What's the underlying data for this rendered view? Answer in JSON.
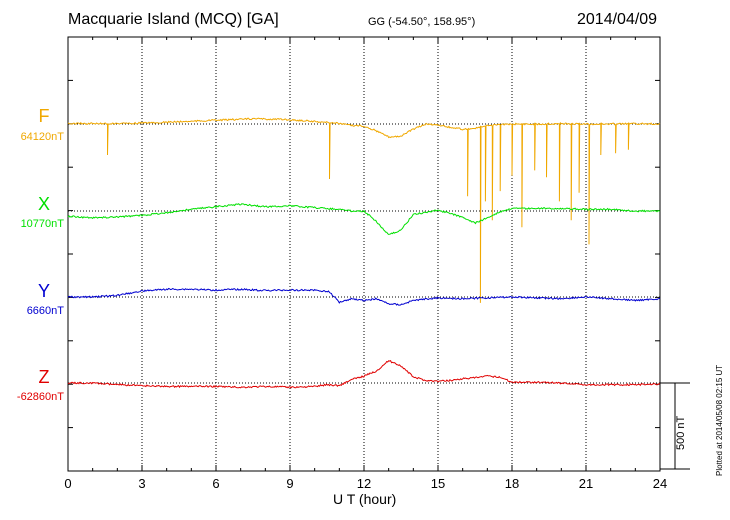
{
  "header": {
    "title": "Macquarie Island (MCQ)  [GA]",
    "coords": "GG (-54.50°, 158.95°)",
    "date": "2014/04/09"
  },
  "footer": {
    "plotted": "Plotted at 2014/05/08 02:15 UT",
    "scale_label": "500 nT"
  },
  "chart_data": {
    "type": "line",
    "xlabel": "U T (hour)",
    "xlim": [
      0,
      24
    ],
    "xticks": [
      0,
      3,
      6,
      9,
      12,
      15,
      18,
      21,
      24
    ],
    "grid": "dotted vertical lines every 3 hours; dotted baseline per component",
    "scale_bar_nT": 500,
    "series": [
      {
        "name": "F",
        "baseline_label": "64120nT",
        "color": "#f0a800",
        "points": [
          [
            0,
            3
          ],
          [
            1,
            3
          ],
          [
            1.5,
            2
          ],
          [
            2.5,
            4
          ],
          [
            4,
            10
          ],
          [
            6,
            22
          ],
          [
            7.5,
            30
          ],
          [
            8.5,
            28
          ],
          [
            9.5,
            20
          ],
          [
            10.5,
            10
          ],
          [
            11,
            3
          ],
          [
            11.5,
            -8
          ],
          [
            12,
            -12
          ],
          [
            12.5,
            -40
          ],
          [
            13,
            -75
          ],
          [
            13.5,
            -70
          ],
          [
            14,
            -30
          ],
          [
            14.5,
            0
          ],
          [
            15,
            -5
          ],
          [
            15.5,
            -20
          ],
          [
            16,
            -30
          ],
          [
            16.5,
            -25
          ],
          [
            17,
            -10
          ],
          [
            17.5,
            -5
          ],
          [
            18,
            0
          ],
          [
            19,
            0
          ],
          [
            20,
            2
          ],
          [
            21,
            0
          ],
          [
            22,
            0
          ],
          [
            23,
            2
          ],
          [
            24,
            0
          ]
        ],
        "spikes": [
          [
            1.6,
            -180
          ],
          [
            10.6,
            -320
          ],
          [
            16.2,
            -420
          ],
          [
            16.7,
            -1040
          ],
          [
            16.9,
            -450
          ],
          [
            17.2,
            -560
          ],
          [
            17.5,
            -390
          ],
          [
            18.0,
            -300
          ],
          [
            18.4,
            -600
          ],
          [
            18.9,
            -270
          ],
          [
            19.4,
            -310
          ],
          [
            19.9,
            -450
          ],
          [
            20.4,
            -560
          ],
          [
            20.7,
            -400
          ],
          [
            21.1,
            -700
          ],
          [
            21.6,
            -180
          ],
          [
            22.2,
            -170
          ],
          [
            22.7,
            -150
          ]
        ]
      },
      {
        "name": "X",
        "baseline_label": "10770nT",
        "color": "#00e000",
        "points": [
          [
            0,
            -30
          ],
          [
            1,
            -40
          ],
          [
            2,
            -35
          ],
          [
            3,
            -25
          ],
          [
            4,
            -10
          ],
          [
            5,
            10
          ],
          [
            6,
            25
          ],
          [
            7,
            40
          ],
          [
            8,
            25
          ],
          [
            9,
            30
          ],
          [
            10,
            20
          ],
          [
            11,
            10
          ],
          [
            11.5,
            0
          ],
          [
            12,
            0
          ],
          [
            12.5,
            -60
          ],
          [
            13,
            -140
          ],
          [
            13.5,
            -110
          ],
          [
            14,
            -20
          ],
          [
            15,
            5
          ],
          [
            15.5,
            -15
          ],
          [
            16,
            -35
          ],
          [
            16.5,
            -70
          ],
          [
            17,
            -40
          ],
          [
            17.5,
            -5
          ],
          [
            18,
            15
          ],
          [
            19,
            15
          ],
          [
            20,
            15
          ],
          [
            21,
            10
          ],
          [
            22,
            10
          ],
          [
            23,
            0
          ],
          [
            24,
            0
          ]
        ]
      },
      {
        "name": "Y",
        "baseline_label": "6660nT",
        "color": "#0000d0",
        "points": [
          [
            0,
            0
          ],
          [
            1,
            0
          ],
          [
            2,
            10
          ],
          [
            3,
            35
          ],
          [
            4,
            45
          ],
          [
            5,
            45
          ],
          [
            6,
            40
          ],
          [
            7,
            45
          ],
          [
            8,
            38
          ],
          [
            9,
            40
          ],
          [
            10,
            40
          ],
          [
            10.6,
            30
          ],
          [
            11,
            -30
          ],
          [
            11.5,
            -10
          ],
          [
            12,
            -20
          ],
          [
            12.5,
            -10
          ],
          [
            13,
            -40
          ],
          [
            13.5,
            -45
          ],
          [
            14,
            -20
          ],
          [
            15,
            -5
          ],
          [
            16,
            -10
          ],
          [
            17,
            -5
          ],
          [
            18,
            0
          ],
          [
            19,
            -5
          ],
          [
            20,
            -10
          ],
          [
            21,
            0
          ],
          [
            22,
            -10
          ],
          [
            23,
            -20
          ],
          [
            24,
            -10
          ]
        ]
      },
      {
        "name": "Z",
        "baseline_label": "-62860nT",
        "color": "#e00000",
        "points": [
          [
            0,
            0
          ],
          [
            1,
            0
          ],
          [
            2,
            -10
          ],
          [
            3,
            -15
          ],
          [
            4,
            -20
          ],
          [
            5,
            -20
          ],
          [
            6,
            -20
          ],
          [
            7,
            -25
          ],
          [
            8,
            -20
          ],
          [
            9,
            -25
          ],
          [
            10,
            -20
          ],
          [
            10.5,
            -10
          ],
          [
            11,
            -15
          ],
          [
            11.5,
            20
          ],
          [
            12,
            40
          ],
          [
            12.5,
            70
          ],
          [
            13,
            130
          ],
          [
            13.5,
            100
          ],
          [
            14,
            35
          ],
          [
            14.5,
            15
          ],
          [
            15,
            10
          ],
          [
            15.5,
            15
          ],
          [
            16,
            25
          ],
          [
            16.5,
            30
          ],
          [
            17,
            40
          ],
          [
            17.5,
            35
          ],
          [
            18,
            5
          ],
          [
            19,
            5
          ],
          [
            20,
            0
          ],
          [
            21,
            -10
          ],
          [
            22,
            -10
          ],
          [
            23,
            -10
          ],
          [
            24,
            -5
          ]
        ]
      }
    ]
  }
}
